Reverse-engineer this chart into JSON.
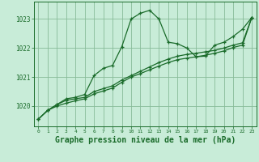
{
  "background_color": "#c8ecd8",
  "plot_bg_color": "#c8ecd8",
  "grid_color": "#88bb99",
  "line_color": "#1a6b2a",
  "title": "Graphe pression niveau de la mer (hPa)",
  "title_fontsize": 7,
  "xlabel_ticks": [
    0,
    1,
    2,
    3,
    4,
    5,
    6,
    7,
    8,
    9,
    10,
    11,
    12,
    13,
    14,
    15,
    16,
    17,
    18,
    19,
    20,
    21,
    22,
    23
  ],
  "yticks": [
    1020,
    1021,
    1022,
    1023
  ],
  "ylim": [
    1019.3,
    1023.6
  ],
  "xlim": [
    -0.5,
    23.5
  ],
  "line1_x": [
    0,
    1,
    2,
    3,
    4,
    5,
    6,
    7,
    8,
    9,
    10,
    11,
    12,
    13,
    14,
    15,
    16,
    17,
    18,
    19,
    20,
    21,
    22,
    23
  ],
  "line1_y": [
    1019.55,
    1019.85,
    1020.05,
    1020.25,
    1020.3,
    1020.4,
    1021.05,
    1021.3,
    1021.4,
    1022.05,
    1023.0,
    1023.2,
    1023.3,
    1023.0,
    1022.2,
    1022.15,
    1022.0,
    1021.7,
    1021.72,
    1022.1,
    1022.2,
    1022.4,
    1022.65,
    1023.05
  ],
  "line2_x": [
    0,
    1,
    2,
    3,
    4,
    5,
    6,
    7,
    8,
    9,
    10,
    11,
    12,
    13,
    14,
    15,
    16,
    17,
    18,
    19,
    20,
    21,
    22,
    23
  ],
  "line2_y": [
    1019.55,
    1019.85,
    1020.05,
    1020.2,
    1020.25,
    1020.3,
    1020.5,
    1020.6,
    1020.7,
    1020.9,
    1021.05,
    1021.2,
    1021.35,
    1021.5,
    1021.62,
    1021.72,
    1021.78,
    1021.82,
    1021.87,
    1021.92,
    1022.0,
    1022.1,
    1022.18,
    1023.05
  ],
  "line3_x": [
    0,
    1,
    2,
    3,
    4,
    5,
    6,
    7,
    8,
    9,
    10,
    11,
    12,
    13,
    14,
    15,
    16,
    17,
    18,
    19,
    20,
    21,
    22,
    23
  ],
  "line3_y": [
    1019.55,
    1019.85,
    1020.0,
    1020.1,
    1020.18,
    1020.25,
    1020.42,
    1020.52,
    1020.62,
    1020.82,
    1021.0,
    1021.12,
    1021.25,
    1021.38,
    1021.5,
    1021.6,
    1021.65,
    1021.7,
    1021.75,
    1021.82,
    1021.9,
    1022.02,
    1022.1,
    1023.05
  ]
}
